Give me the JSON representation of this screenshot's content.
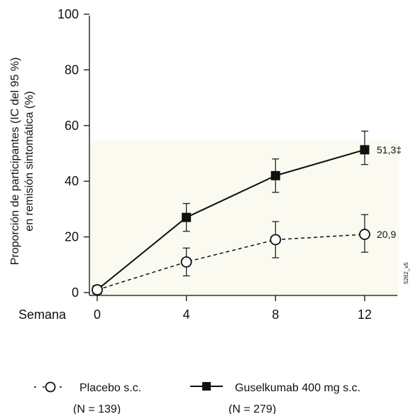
{
  "chart_data": {
    "type": "line",
    "xlabel": "Semana",
    "ylabel_line1": "Proporción de participantes (IC del 95 %)",
    "ylabel_line2": "en remisión sintomática (%)",
    "x": [
      0,
      4,
      8,
      12
    ],
    "x_ticks": [
      "0",
      "4",
      "8",
      "12"
    ],
    "y_ticks": [
      "0",
      "20",
      "40",
      "60",
      "80",
      "100"
    ],
    "xlim": [
      0,
      13.5
    ],
    "ylim": [
      0,
      100
    ],
    "grid": false,
    "series": [
      {
        "name": "Guselkumab 400 mg s.c.",
        "n_label": "(N = 279)",
        "values": [
          1,
          27,
          42,
          51.3
        ],
        "ci_low": [
          null,
          22,
          36,
          46
        ],
        "ci_high": [
          null,
          32,
          48,
          58
        ],
        "marker": "filled-square",
        "line": "solid",
        "end_label": "51,3‡"
      },
      {
        "name": "Placebo s.c.",
        "n_label": "(N = 139)",
        "values": [
          1,
          11,
          19,
          20.9
        ],
        "ci_low": [
          null,
          6,
          12.5,
          14.5
        ],
        "ci_high": [
          null,
          16,
          25.5,
          28
        ],
        "marker": "open-circle",
        "line": "dashed",
        "end_label": "20,9"
      }
    ],
    "annotation_code": "5262_v5",
    "colors": {
      "ink": "#111111",
      "panel": "#fafaf0"
    }
  }
}
